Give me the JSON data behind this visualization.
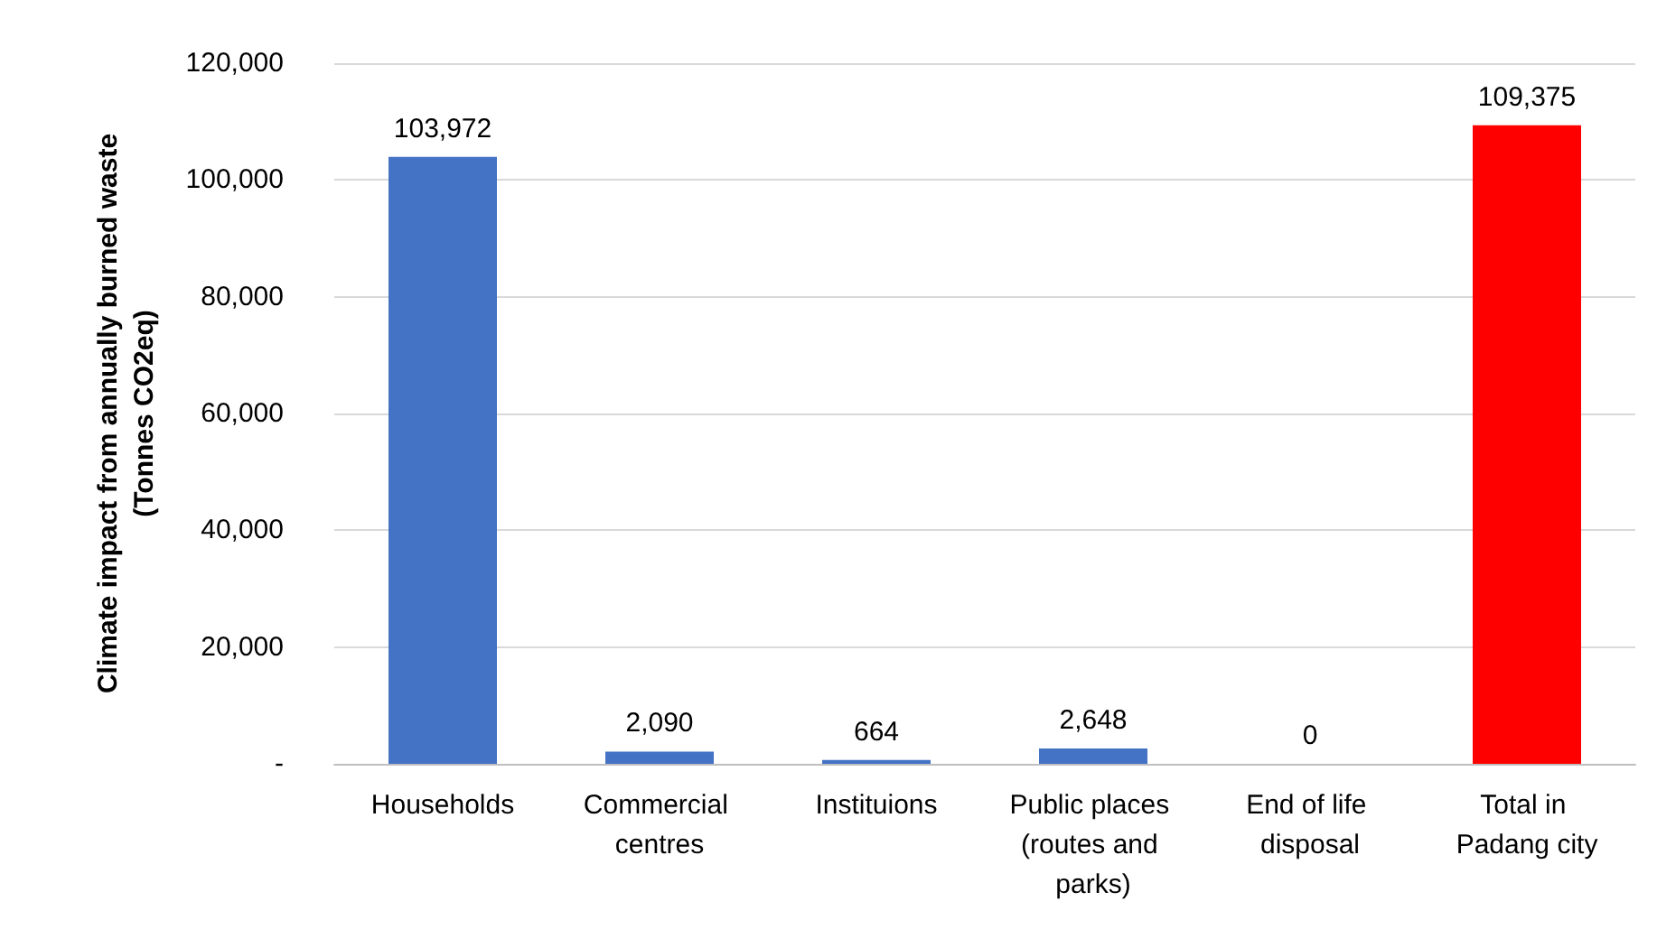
{
  "chart_data": {
    "type": "bar",
    "ylabel": "Climate impact from annually burned waste\n(Tonnes CO2eq)",
    "categories": [
      "Households",
      "Commercial centres",
      "Instituions",
      "Public places (routes and parks)",
      "End of life disposal",
      "Total in Padang city"
    ],
    "values": [
      103972,
      2090,
      664,
      2648,
      0,
      109375
    ],
    "colors": [
      "#4472c4",
      "#4472c4",
      "#4472c4",
      "#4472c4",
      "#4472c4",
      "#ff0000"
    ],
    "ylim": [
      0,
      120000
    ],
    "yticks": [
      {
        "value": 0,
        "label": "-"
      },
      {
        "value": 20000,
        "label": "20,000"
      },
      {
        "value": 40000,
        "label": "40,000"
      },
      {
        "value": 60000,
        "label": "60,000"
      },
      {
        "value": 80000,
        "label": "80,000"
      },
      {
        "value": 100000,
        "label": "100,000"
      },
      {
        "value": 120000,
        "label": "120,000"
      }
    ],
    "value_labels": [
      "103,972",
      "2,090",
      "664",
      "2,648",
      "0",
      "109,375"
    ],
    "grid": "y"
  }
}
